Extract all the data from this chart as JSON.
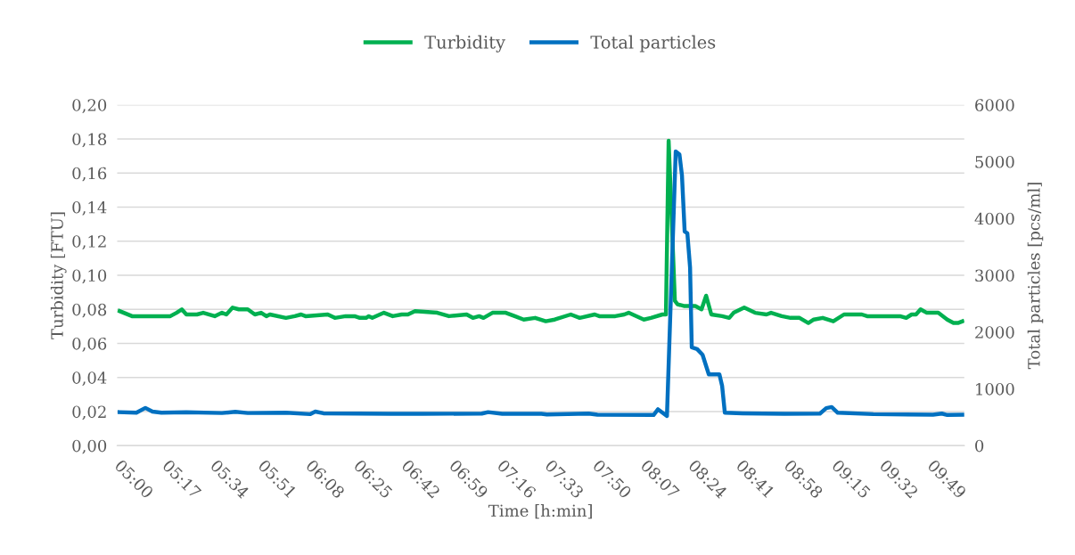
{
  "chart_data": {
    "type": "line",
    "xlabel": "Time [h:min]",
    "ylabel": "Turbidity [FTU]",
    "y2label": "Total particles [pcs/ml]",
    "xlim": [
      4.97,
      9.99
    ],
    "xticks": [
      {
        "value": 5.0,
        "label": "05:00"
      },
      {
        "value": 5.283,
        "label": "05:17"
      },
      {
        "value": 5.567,
        "label": "05:34"
      },
      {
        "value": 5.85,
        "label": "05:51"
      },
      {
        "value": 6.133,
        "label": "06:08"
      },
      {
        "value": 6.417,
        "label": "06:25"
      },
      {
        "value": 6.7,
        "label": "06:42"
      },
      {
        "value": 6.983,
        "label": "06:59"
      },
      {
        "value": 7.267,
        "label": "07:16"
      },
      {
        "value": 7.55,
        "label": "07:33"
      },
      {
        "value": 7.833,
        "label": "07:50"
      },
      {
        "value": 8.117,
        "label": "08:07"
      },
      {
        "value": 8.4,
        "label": "08:24"
      },
      {
        "value": 8.683,
        "label": "08:41"
      },
      {
        "value": 8.967,
        "label": "08:58"
      },
      {
        "value": 9.25,
        "label": "09:15"
      },
      {
        "value": 9.533,
        "label": "09:32"
      },
      {
        "value": 9.817,
        "label": "09:49"
      }
    ],
    "ylim": [
      0,
      0.2
    ],
    "yticks": [
      {
        "value": 0,
        "label": "0,00"
      },
      {
        "value": 0.02,
        "label": "0,02"
      },
      {
        "value": 0.04,
        "label": "0,04"
      },
      {
        "value": 0.06,
        "label": "0,06"
      },
      {
        "value": 0.08,
        "label": "0,08"
      },
      {
        "value": 0.1,
        "label": "0,10"
      },
      {
        "value": 0.12,
        "label": "0,12"
      },
      {
        "value": 0.14,
        "label": "0,14"
      },
      {
        "value": 0.16,
        "label": "0,16"
      },
      {
        "value": 0.18,
        "label": "0,18"
      },
      {
        "value": 0.2,
        "label": "0,20"
      }
    ],
    "y2lim": [
      0,
      6000
    ],
    "y2ticks": [
      0,
      1000,
      2000,
      3000,
      4000,
      5000,
      6000
    ],
    "grid": "y",
    "legend": "top",
    "marker": "none",
    "line_style": "solid",
    "series": [
      {
        "name": "Turbidity",
        "color": "#00b050",
        "x": [
          4.984,
          5.058,
          5.285,
          5.322,
          5.353,
          5.38,
          5.443,
          5.48,
          5.548,
          5.591,
          5.617,
          5.654,
          5.691,
          5.744,
          5.786,
          5.823,
          5.854,
          5.875,
          5.97,
          6.023,
          6.06,
          6.086,
          6.218,
          6.26,
          6.324,
          6.377,
          6.408,
          6.445,
          6.461,
          6.482,
          6.551,
          6.603,
          6.656,
          6.693,
          6.735,
          6.867,
          6.936,
          7.041,
          7.078,
          7.115,
          7.141,
          7.194,
          7.273,
          7.326,
          7.379,
          7.447,
          7.51,
          7.563,
          7.658,
          7.711,
          7.8,
          7.827,
          7.922,
          7.975,
          8.001,
          8.091,
          8.133,
          8.201,
          8.222,
          8.238,
          8.275,
          8.291,
          8.328,
          8.396,
          8.433,
          8.46,
          8.491,
          8.555,
          8.597,
          8.623,
          8.686,
          8.75,
          8.818,
          8.845,
          8.908,
          8.961,
          9.014,
          9.066,
          9.098,
          9.151,
          9.214,
          9.277,
          9.383,
          9.414,
          9.609,
          9.646,
          9.678,
          9.704,
          9.731,
          9.768,
          9.836,
          9.889,
          9.926,
          9.952,
          9.979
        ],
        "values": [
          0.079,
          0.076,
          0.076,
          0.078,
          0.08,
          0.077,
          0.077,
          0.078,
          0.076,
          0.078,
          0.077,
          0.081,
          0.08,
          0.08,
          0.077,
          0.078,
          0.076,
          0.077,
          0.075,
          0.076,
          0.077,
          0.076,
          0.077,
          0.075,
          0.076,
          0.076,
          0.075,
          0.075,
          0.076,
          0.075,
          0.078,
          0.076,
          0.077,
          0.077,
          0.079,
          0.078,
          0.076,
          0.077,
          0.075,
          0.076,
          0.075,
          0.078,
          0.078,
          0.076,
          0.074,
          0.075,
          0.073,
          0.074,
          0.077,
          0.075,
          0.077,
          0.076,
          0.076,
          0.077,
          0.078,
          0.074,
          0.075,
          0.077,
          0.077,
          0.179,
          0.085,
          0.083,
          0.082,
          0.082,
          0.08,
          0.088,
          0.077,
          0.076,
          0.075,
          0.078,
          0.081,
          0.078,
          0.077,
          0.078,
          0.076,
          0.075,
          0.075,
          0.072,
          0.074,
          0.075,
          0.073,
          0.077,
          0.077,
          0.076,
          0.076,
          0.075,
          0.077,
          0.077,
          0.08,
          0.078,
          0.078,
          0.074,
          0.072,
          0.072,
          0.073
        ]
      },
      {
        "name": "Total particles",
        "color": "#0070c0",
        "axis": "y2",
        "x": [
          4.984,
          5.084,
          5.137,
          5.179,
          5.232,
          5.38,
          5.591,
          5.67,
          5.744,
          5.97,
          6.113,
          6.144,
          6.192,
          6.592,
          6.777,
          7.131,
          7.168,
          7.252,
          7.484,
          7.516,
          7.764,
          7.816,
          8.149,
          8.175,
          8.228,
          8.28,
          8.302,
          8.317,
          8.333,
          8.349,
          8.365,
          8.375,
          8.407,
          8.439,
          8.476,
          8.539,
          8.555,
          8.571,
          8.676,
          8.924,
          9.135,
          9.172,
          9.204,
          9.24,
          9.451,
          9.805,
          9.857,
          9.889,
          9.979
        ],
        "values": [
          590,
          580,
          665,
          600,
          580,
          590,
          575,
          595,
          575,
          580,
          555,
          600,
          570,
          560,
          560,
          565,
          590,
          560,
          560,
          550,
          565,
          545,
          540,
          640,
          523,
          5180,
          5130,
          4760,
          3770,
          3740,
          3140,
          1730,
          1700,
          1600,
          1255,
          1255,
          1050,
          580,
          570,
          560,
          565,
          660,
          680,
          580,
          555,
          545,
          565,
          540,
          545
        ]
      }
    ]
  }
}
